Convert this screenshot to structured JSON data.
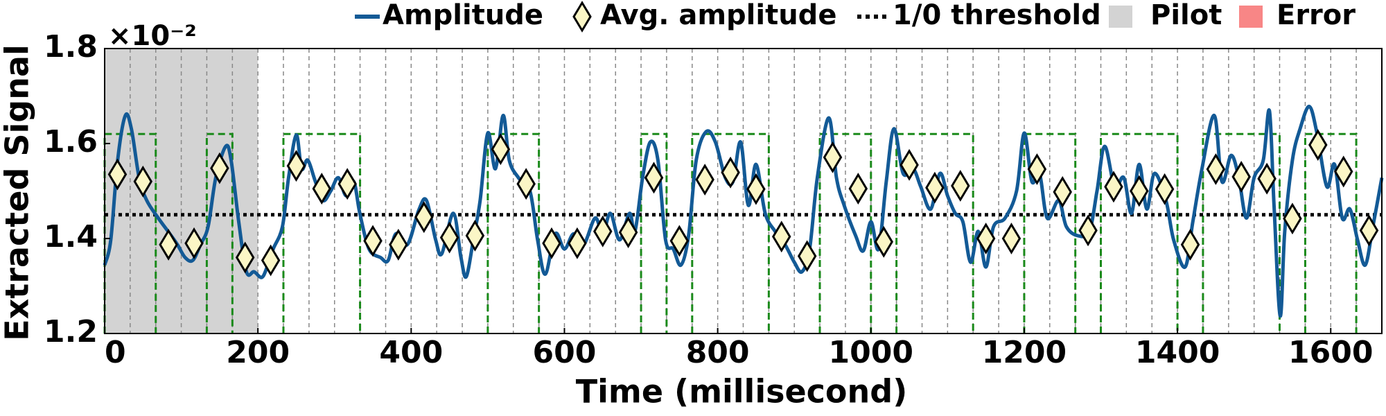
{
  "chart_data": {
    "type": "line",
    "xlabel": "Time (millisecond)",
    "ylabel": "Extracted Signal",
    "y_multiplier": "×10⁻²",
    "xlim": [
      0,
      1666.7
    ],
    "ylim": [
      1.2,
      1.8
    ],
    "xticks": [
      0,
      200,
      400,
      600,
      800,
      1000,
      1200,
      1400,
      1600
    ],
    "yticks": [
      1.2,
      1.4,
      1.6,
      1.8
    ],
    "bit_boundaries": [
      33.3,
      66.7,
      100,
      133.3,
      166.7,
      200,
      233.3,
      266.7,
      300,
      333.3,
      366.7,
      400,
      433.3,
      466.7,
      500,
      533.3,
      566.7,
      600,
      633.3,
      666.7,
      700,
      733.3,
      766.7,
      800,
      833.3,
      866.7,
      900,
      933.3,
      966.7,
      1000,
      1033.3,
      1066.7,
      1100,
      1133.3,
      1166.7,
      1200,
      1233.3,
      1266.7,
      1300,
      1333.3,
      1366.7,
      1400,
      1433.3,
      1466.7,
      1500,
      1533.3,
      1566.7,
      1600,
      1633.3
    ],
    "bit_one_level": 1.62,
    "bit_one_color": "#1a8a1a",
    "bit_one_spans": [
      [
        0,
        66.7
      ],
      [
        133.3,
        166.7
      ],
      [
        233.3,
        333.3
      ],
      [
        500,
        566.7
      ],
      [
        700,
        733.3
      ],
      [
        766.7,
        866.7
      ],
      [
        933.3,
        1000
      ],
      [
        1033.3,
        1133.3
      ],
      [
        1200,
        1266.7
      ],
      [
        1300,
        1400
      ],
      [
        1433.3,
        1533.3
      ],
      [
        1566.7,
        1633.3
      ]
    ],
    "series": [
      {
        "name": "Amplitude",
        "color": "#135a96",
        "x": [
          0,
          8,
          17,
          27,
          35,
          45,
          55,
          70,
          85,
          95,
          105,
          115,
          125,
          135,
          145,
          158,
          165,
          175,
          185,
          195,
          205,
          212,
          220,
          232,
          240,
          250,
          257,
          265,
          275,
          285,
          295,
          305,
          315,
          325,
          333,
          345,
          360,
          370,
          380,
          395,
          410,
          420,
          432,
          440,
          455,
          465,
          472,
          482,
          490,
          500,
          510,
          520,
          528,
          540,
          555,
          565,
          575,
          588,
          600,
          612,
          625,
          640,
          650,
          660,
          672,
          685,
          692,
          702,
          712,
          722,
          732,
          742,
          752,
          762,
          772,
          785,
          797,
          810,
          820,
          830,
          840,
          850,
          862,
          875,
          888,
          900,
          910,
          920,
          930,
          945,
          955,
          965,
          980,
          990,
          1000,
          1010,
          1020,
          1030,
          1042,
          1055,
          1065,
          1078,
          1090,
          1100,
          1110,
          1120,
          1130,
          1140,
          1150,
          1160,
          1175,
          1190,
          1200,
          1210,
          1220,
          1230,
          1245,
          1255,
          1270,
          1285,
          1295,
          1305,
          1318,
          1330,
          1340,
          1350,
          1360,
          1370,
          1385,
          1395,
          1410,
          1420,
          1432,
          1448,
          1458,
          1470,
          1480,
          1490,
          1500,
          1512,
          1520,
          1526,
          1534,
          1540,
          1550,
          1560,
          1572,
          1582,
          1595,
          1605,
          1615,
          1625,
          1635,
          1645,
          1655,
          1666.7
        ],
        "values": [
          1.344,
          1.397,
          1.565,
          1.659,
          1.63,
          1.528,
          1.48,
          1.443,
          1.41,
          1.387,
          1.36,
          1.354,
          1.387,
          1.425,
          1.528,
          1.594,
          1.565,
          1.435,
          1.33,
          1.33,
          1.318,
          1.34,
          1.378,
          1.425,
          1.528,
          1.618,
          1.547,
          1.565,
          1.52,
          1.48,
          1.5,
          1.528,
          1.49,
          1.52,
          1.453,
          1.378,
          1.36,
          1.354,
          1.41,
          1.387,
          1.46,
          1.48,
          1.397,
          1.368,
          1.453,
          1.36,
          1.32,
          1.406,
          1.48,
          1.622,
          1.547,
          1.659,
          1.565,
          1.528,
          1.5,
          1.397,
          1.325,
          1.41,
          1.378,
          1.41,
          1.387,
          1.443,
          1.41,
          1.453,
          1.397,
          1.453,
          1.415,
          1.528,
          1.603,
          1.565,
          1.397,
          1.378,
          1.344,
          1.406,
          1.565,
          1.625,
          1.603,
          1.528,
          1.52,
          1.603,
          1.47,
          1.556,
          1.453,
          1.415,
          1.387,
          1.35,
          1.33,
          1.378,
          1.528,
          1.654,
          1.528,
          1.47,
          1.406,
          1.374,
          1.435,
          1.378,
          1.52,
          1.631,
          1.537,
          1.547,
          1.509,
          1.462,
          1.537,
          1.49,
          1.453,
          1.435,
          1.35,
          1.415,
          1.34,
          1.425,
          1.443,
          1.5,
          1.622,
          1.52,
          1.537,
          1.443,
          1.48,
          1.425,
          1.406,
          1.415,
          1.5,
          1.594,
          1.509,
          1.528,
          1.453,
          1.556,
          1.462,
          1.537,
          1.48,
          1.397,
          1.34,
          1.435,
          1.547,
          1.659,
          1.52,
          1.575,
          1.528,
          1.443,
          1.528,
          1.565,
          1.669,
          1.47,
          1.237,
          1.415,
          1.565,
          1.631,
          1.678,
          1.622,
          1.509,
          1.556,
          1.443,
          1.462,
          1.397,
          1.344,
          1.425,
          1.528
        ]
      },
      {
        "name": "Avg. amplitude",
        "color": "#fbf6c6",
        "marker": "diamond",
        "x": [
          16.7,
          50,
          83.3,
          116.7,
          150,
          183.3,
          216.7,
          250,
          283.3,
          316.7,
          350,
          383.3,
          416.7,
          450,
          483.3,
          516.7,
          550,
          583.3,
          616.7,
          650,
          683.3,
          716.7,
          750,
          783.3,
          816.7,
          850,
          883.3,
          916.7,
          950,
          983.3,
          1016.7,
          1050,
          1083.3,
          1116.7,
          1150,
          1183.3,
          1216.7,
          1250,
          1283.3,
          1316.7,
          1350,
          1383.3,
          1416.7,
          1450,
          1483.3,
          1516.7,
          1550,
          1583.3,
          1616.7,
          1650
        ],
        "values": [
          1.535,
          1.52,
          1.387,
          1.39,
          1.548,
          1.36,
          1.354,
          1.553,
          1.505,
          1.515,
          1.395,
          1.387,
          1.445,
          1.402,
          1.406,
          1.588,
          1.515,
          1.39,
          1.39,
          1.415,
          1.413,
          1.528,
          1.395,
          1.524,
          1.539,
          1.504,
          1.404,
          1.363,
          1.571,
          1.505,
          1.393,
          1.555,
          1.507,
          1.511,
          1.4,
          1.4,
          1.546,
          1.498,
          1.417,
          1.509,
          1.5,
          1.504,
          1.387,
          1.546,
          1.53,
          1.526,
          1.442,
          1.597,
          1.541,
          1.417
        ]
      }
    ],
    "threshold": {
      "name": "1/0 threshold",
      "value": 1.45,
      "color": "#000000"
    },
    "pilot": {
      "name": "Pilot",
      "range": [
        0,
        200
      ],
      "color": "#d3d3d3"
    },
    "error": {
      "name": "Error",
      "color": "#f88686"
    }
  }
}
